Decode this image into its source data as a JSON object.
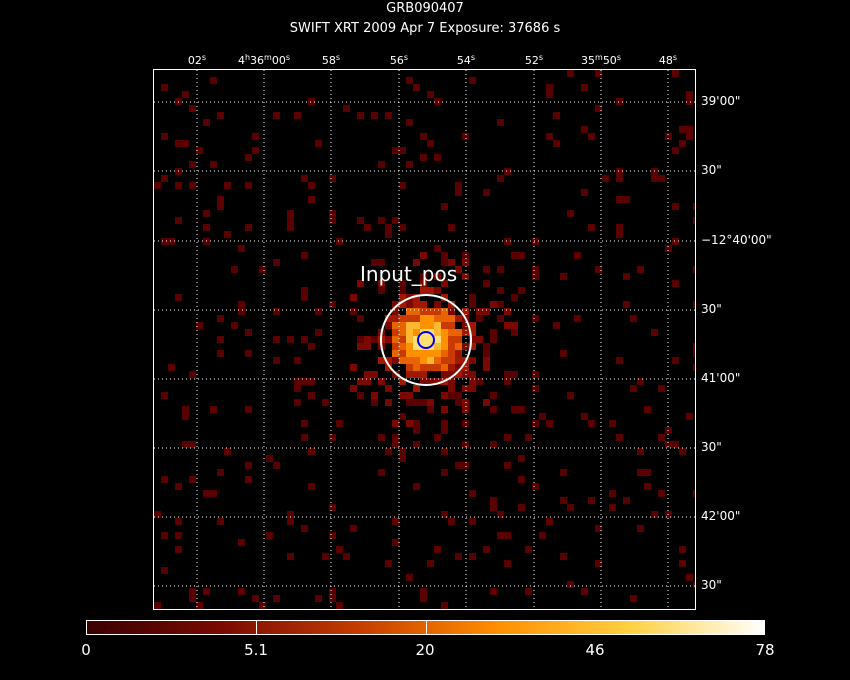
{
  "header": {
    "title": "GRB090407",
    "subtitle": "SWIFT XRT   2009 Apr  7    Exposure: 37686 s"
  },
  "ra_axis": {
    "ticks": [
      {
        "label": "02",
        "unit": "s"
      },
      {
        "label": "4",
        "unit": "h",
        "label2": "36",
        "unit2": "m",
        "label3": "00",
        "unit3": "s"
      },
      {
        "label": "58",
        "unit": "s"
      },
      {
        "label": "56",
        "unit": "s"
      },
      {
        "label": "54",
        "unit": "s"
      },
      {
        "label": "52",
        "unit": "s"
      },
      {
        "label": "35",
        "unit": "m",
        "label2": "50",
        "unit2": "s"
      },
      {
        "label": "48",
        "unit": "s"
      }
    ]
  },
  "dec_axis": {
    "ticks": [
      "39'00\"",
      "30\"",
      "−12°40'00\"",
      "30\"",
      "41'00\"",
      "30\"",
      "42'00\"",
      "30\""
    ]
  },
  "source": {
    "label": "Input_pos",
    "circle_color": "#ffffff",
    "marker_color": "#0000ff"
  },
  "colorbar": {
    "labels": [
      "0",
      "5.1",
      "20",
      "46",
      "78"
    ],
    "colors": [
      "#3a0000",
      "#7a0a00",
      "#c43c00",
      "#ff8c00",
      "#ffd040",
      "#ffffff"
    ]
  }
}
